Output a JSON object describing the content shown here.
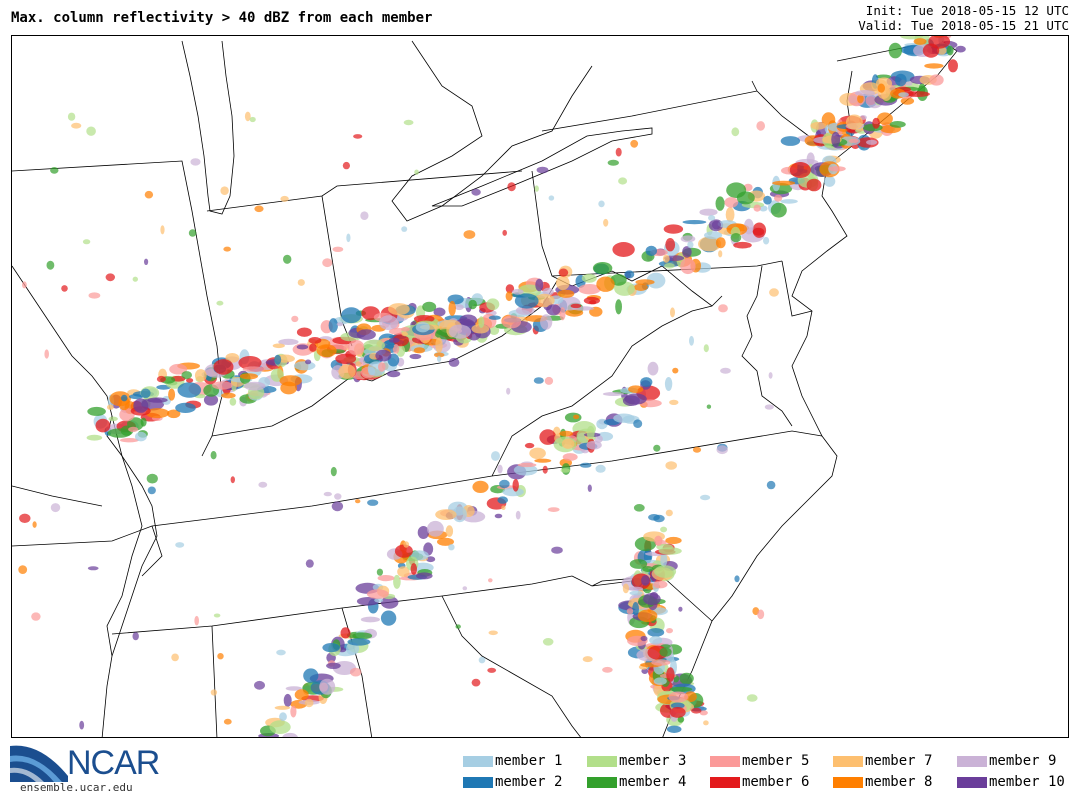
{
  "header": {
    "title": "Max. column reflectivity > 40 dBZ from each member",
    "init": "Init: Tue 2018-05-15 12 UTC",
    "valid": "Valid: Tue 2018-05-15 21 UTC"
  },
  "branding": {
    "logo_text": "NCAR",
    "url": "ensemble.ucar.edu"
  },
  "legend": [
    {
      "label": "member 1",
      "color": "#a6cee3"
    },
    {
      "label": "member 2",
      "color": "#1f78b4"
    },
    {
      "label": "member 3",
      "color": "#b2df8a"
    },
    {
      "label": "member 4",
      "color": "#33a02c"
    },
    {
      "label": "member 5",
      "color": "#fb9a99"
    },
    {
      "label": "member 6",
      "color": "#e31a1c"
    },
    {
      "label": "member 7",
      "color": "#fdbf6f"
    },
    {
      "label": "member 8",
      "color": "#ff7f00"
    },
    {
      "label": "member 9",
      "color": "#cab2d6"
    },
    {
      "label": "member 10",
      "color": "#6a3d9a"
    }
  ]
}
